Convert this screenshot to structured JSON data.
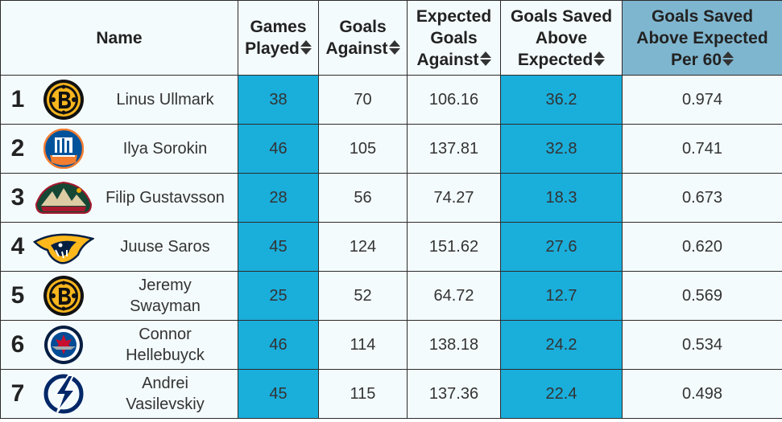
{
  "headers": {
    "name": "Name",
    "games_played": [
      "Games",
      "Played"
    ],
    "goals_against": [
      "Goals",
      "Against"
    ],
    "expected_goals_against": [
      "Expected",
      "Goals",
      "Against"
    ],
    "gsax": [
      "Goals Saved",
      "Above",
      "Expected"
    ],
    "gsax_per60": [
      "Goals Saved",
      "Above Expected",
      "Per 60"
    ]
  },
  "sorted_column": "gsax_per60",
  "colors": {
    "highlight": "#1aaedb",
    "sorted_header": "#7fb6cf",
    "cell_bg": "#f4fbfd"
  },
  "rows": [
    {
      "rank": "1",
      "logo": "bruins-logo",
      "name": "Linus Ullmark",
      "gp": "38",
      "ga": "70",
      "xga": "106.16",
      "gsax": "36.2",
      "gsax60": "0.974"
    },
    {
      "rank": "2",
      "logo": "islanders-logo",
      "name": "Ilya Sorokin",
      "gp": "46",
      "ga": "105",
      "xga": "137.81",
      "gsax": "32.8",
      "gsax60": "0.741"
    },
    {
      "rank": "3",
      "logo": "wild-logo",
      "name": "Filip Gustavsson",
      "gp": "28",
      "ga": "56",
      "xga": "74.27",
      "gsax": "18.3",
      "gsax60": "0.673"
    },
    {
      "rank": "4",
      "logo": "predators-logo",
      "name": "Juuse Saros",
      "gp": "45",
      "ga": "124",
      "xga": "151.62",
      "gsax": "27.6",
      "gsax60": "0.620"
    },
    {
      "rank": "5",
      "logo": "bruins-logo",
      "name": "Jeremy Swayman",
      "gp": "25",
      "ga": "52",
      "xga": "64.72",
      "gsax": "12.7",
      "gsax60": "0.569"
    },
    {
      "rank": "6",
      "logo": "jets-logo",
      "name": "Connor Hellebuyck",
      "gp": "46",
      "ga": "114",
      "xga": "138.18",
      "gsax": "24.2",
      "gsax60": "0.534"
    },
    {
      "rank": "7",
      "logo": "lightning-logo",
      "name": "Andrei Vasilevskiy",
      "gp": "45",
      "ga": "115",
      "xga": "137.36",
      "gsax": "22.4",
      "gsax60": "0.498"
    }
  ]
}
